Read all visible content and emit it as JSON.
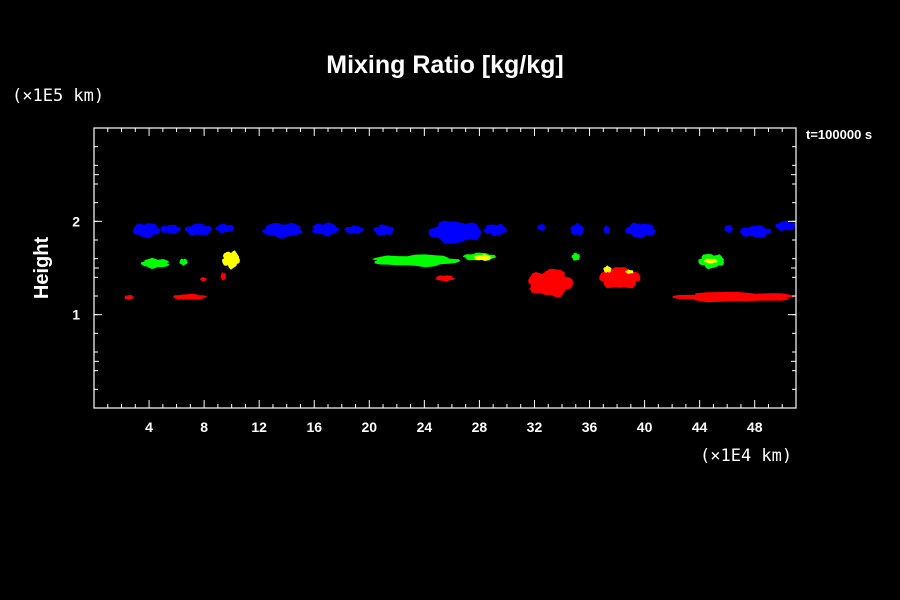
{
  "chart_data": {
    "type": "contour",
    "title": "Mixing Ratio [kg/kg]",
    "ylabel": "Height",
    "xunit": "(×1E4 km)",
    "yunit": "(×1E5 km)",
    "time_label": "t=100000 s",
    "xlim": [
      0,
      51
    ],
    "ylim": [
      0,
      3
    ],
    "xticks": [
      4,
      8,
      12,
      16,
      20,
      24,
      28,
      32,
      36,
      40,
      44,
      48
    ],
    "yticks": [
      1,
      2
    ],
    "colors": {
      "blue": "#0000ff",
      "green": "#00ff00",
      "red": "#ff0000",
      "yellow": "#ffff00",
      "axis": "#ffffff",
      "background": "#000000"
    },
    "regions": [
      {
        "color": "blue",
        "x": [
          2.8,
          4.8
        ],
        "y": [
          1.83,
          1.98
        ]
      },
      {
        "color": "blue",
        "x": [
          4.8,
          6.3
        ],
        "y": [
          1.87,
          1.96
        ]
      },
      {
        "color": "blue",
        "x": [
          6.6,
          8.6
        ],
        "y": [
          1.85,
          1.97
        ]
      },
      {
        "color": "blue",
        "x": [
          8.8,
          10.2
        ],
        "y": [
          1.88,
          1.97
        ]
      },
      {
        "color": "blue",
        "x": [
          12.2,
          15.2
        ],
        "y": [
          1.83,
          1.98
        ]
      },
      {
        "color": "blue",
        "x": [
          15.8,
          17.8
        ],
        "y": [
          1.85,
          1.98
        ]
      },
      {
        "color": "blue",
        "x": [
          18.2,
          19.6
        ],
        "y": [
          1.87,
          1.95
        ]
      },
      {
        "color": "blue",
        "x": [
          20.3,
          21.8
        ],
        "y": [
          1.85,
          1.96
        ]
      },
      {
        "color": "blue",
        "x": [
          24.3,
          28.2
        ],
        "y": [
          1.77,
          2.0
        ]
      },
      {
        "color": "blue",
        "x": [
          28.3,
          30.0
        ],
        "y": [
          1.85,
          1.97
        ]
      },
      {
        "color": "blue",
        "x": [
          32.2,
          32.8
        ],
        "y": [
          1.9,
          1.97
        ]
      },
      {
        "color": "blue",
        "x": [
          34.6,
          35.6
        ],
        "y": [
          1.85,
          1.97
        ]
      },
      {
        "color": "blue",
        "x": [
          37.0,
          37.5
        ],
        "y": [
          1.87,
          1.95
        ]
      },
      {
        "color": "blue",
        "x": [
          38.6,
          40.8
        ],
        "y": [
          1.83,
          1.98
        ]
      },
      {
        "color": "blue",
        "x": [
          45.8,
          46.4
        ],
        "y": [
          1.88,
          1.96
        ]
      },
      {
        "color": "blue",
        "x": [
          46.9,
          49.2
        ],
        "y": [
          1.83,
          1.95
        ]
      },
      {
        "color": "blue",
        "x": [
          49.5,
          51.0
        ],
        "y": [
          1.9,
          2.0
        ]
      },
      {
        "color": "green",
        "x": [
          3.4,
          5.5
        ],
        "y": [
          1.5,
          1.6
        ]
      },
      {
        "color": "green",
        "x": [
          6.2,
          6.8
        ],
        "y": [
          1.53,
          1.6
        ]
      },
      {
        "color": "green",
        "x": [
          20.1,
          26.6
        ],
        "y": [
          1.52,
          1.64
        ]
      },
      {
        "color": "green",
        "x": [
          26.8,
          29.2
        ],
        "y": [
          1.58,
          1.66
        ]
      },
      {
        "color": "green",
        "x": [
          34.7,
          35.3
        ],
        "y": [
          1.58,
          1.66
        ]
      },
      {
        "color": "green",
        "x": [
          43.9,
          45.8
        ],
        "y": [
          1.5,
          1.65
        ]
      },
      {
        "color": "yellow",
        "x": [
          9.3,
          10.6
        ],
        "y": [
          1.5,
          1.68
        ]
      },
      {
        "color": "yellow",
        "x": [
          27.6,
          28.9
        ],
        "y": [
          1.58,
          1.64
        ]
      },
      {
        "color": "yellow",
        "x": [
          37.0,
          37.6
        ],
        "y": [
          1.45,
          1.52
        ]
      },
      {
        "color": "yellow",
        "x": [
          38.6,
          39.2
        ],
        "y": [
          1.44,
          1.48
        ]
      },
      {
        "color": "yellow",
        "x": [
          44.3,
          45.3
        ],
        "y": [
          1.55,
          1.6
        ]
      },
      {
        "color": "red",
        "x": [
          2.2,
          2.9
        ],
        "y": [
          1.16,
          1.21
        ]
      },
      {
        "color": "red",
        "x": [
          5.7,
          8.2
        ],
        "y": [
          1.16,
          1.22
        ]
      },
      {
        "color": "red",
        "x": [
          7.7,
          8.2
        ],
        "y": [
          1.36,
          1.4
        ]
      },
      {
        "color": "red",
        "x": [
          9.2,
          9.6
        ],
        "y": [
          1.37,
          1.45
        ]
      },
      {
        "color": "red",
        "x": [
          24.8,
          26.2
        ],
        "y": [
          1.36,
          1.42
        ]
      },
      {
        "color": "red",
        "x": [
          31.5,
          34.8
        ],
        "y": [
          1.2,
          1.48
        ]
      },
      {
        "color": "red",
        "x": [
          36.7,
          39.7
        ],
        "y": [
          1.28,
          1.5
        ]
      },
      {
        "color": "red",
        "x": [
          42.0,
          51.0
        ],
        "y": [
          1.14,
          1.24
        ]
      }
    ]
  }
}
